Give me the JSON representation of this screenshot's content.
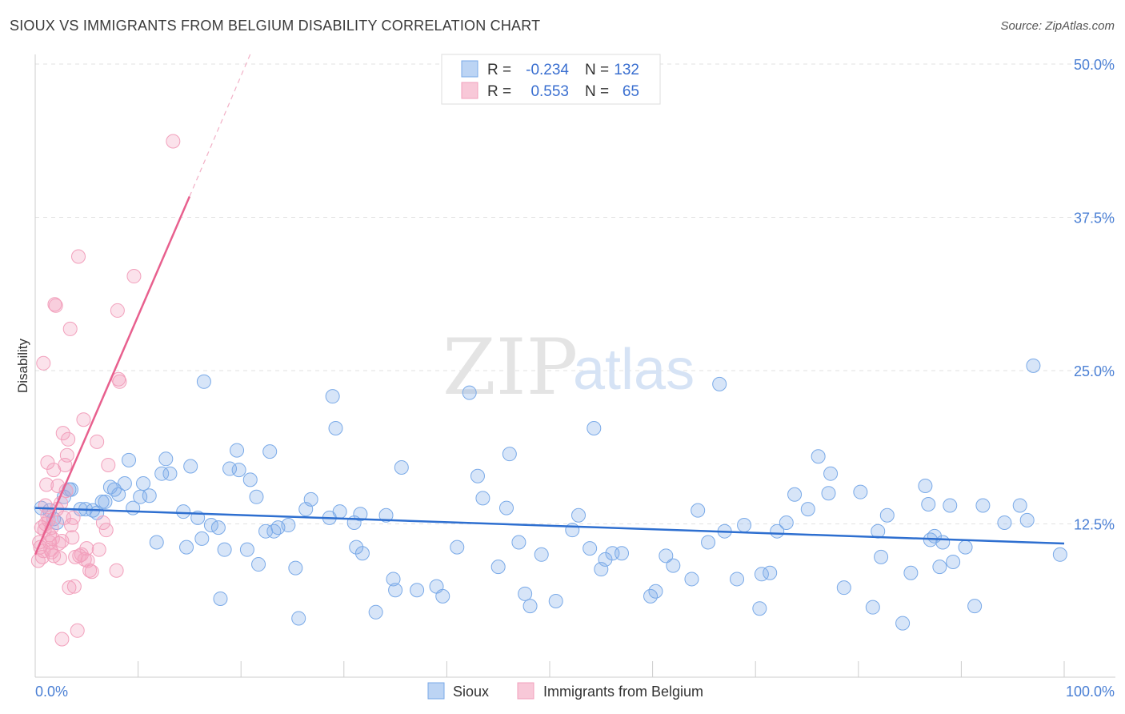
{
  "title": "SIOUX VS IMMIGRANTS FROM BELGIUM DISABILITY CORRELATION CHART",
  "source": "Source: ZipAtlas.com",
  "watermark": {
    "zip": "ZIP",
    "atlas": "atlas"
  },
  "colors": {
    "sioux": "#7aaae8",
    "belgium": "#f2a0bc",
    "sioux_line": "#2e6fd0",
    "belgium_line": "#e8608e",
    "tick": "#4a7fd4"
  },
  "legend": {
    "rows": [
      {
        "r_label": "R =",
        "r_value": "-0.234",
        "n_label": "N =",
        "n_value": "132"
      },
      {
        "r_label": "R =",
        "r_value": "0.553",
        "n_label": "N =",
        "n_value": "65"
      }
    ]
  },
  "chart_data": {
    "type": "scatter",
    "ylabel": "Disability",
    "xlim": [
      0,
      100
    ],
    "ylim": [
      0,
      50
    ],
    "x_tick_labels": [
      "0.0%",
      "100.0%"
    ],
    "y_tick_labels": [
      "12.5%",
      "25.0%",
      "37.5%",
      "50.0%"
    ],
    "y_ticks": [
      12.5,
      25.0,
      37.5,
      50.0
    ],
    "series": [
      {
        "name": "Sioux",
        "trend": {
          "x0": 0,
          "y0": 13.8,
          "x1": 100,
          "y1": 10.9,
          "dash_to": null
        },
        "points": [
          [
            0.6,
            13.8
          ],
          [
            1.4,
            13.6
          ],
          [
            1.8,
            12.9
          ],
          [
            2.1,
            12.6
          ],
          [
            2.8,
            14.7
          ],
          [
            3.3,
            15.3
          ],
          [
            3.5,
            15.3
          ],
          [
            4.4,
            13.7
          ],
          [
            4.9,
            13.7
          ],
          [
            5.6,
            13.6
          ],
          [
            6.0,
            13.4
          ],
          [
            6.5,
            14.3
          ],
          [
            6.8,
            14.3
          ],
          [
            7.3,
            15.5
          ],
          [
            7.7,
            15.3
          ],
          [
            8.1,
            14.9
          ],
          [
            8.7,
            15.8
          ],
          [
            9.1,
            17.7
          ],
          [
            9.5,
            13.8
          ],
          [
            10.2,
            14.7
          ],
          [
            10.5,
            15.8
          ],
          [
            11.1,
            14.8
          ],
          [
            11.8,
            11.0
          ],
          [
            12.3,
            16.6
          ],
          [
            12.7,
            17.8
          ],
          [
            13.1,
            16.6
          ],
          [
            14.4,
            13.5
          ],
          [
            14.7,
            10.6
          ],
          [
            15.1,
            17.2
          ],
          [
            15.8,
            13.0
          ],
          [
            16.2,
            11.3
          ],
          [
            16.4,
            24.1
          ],
          [
            17.1,
            12.4
          ],
          [
            17.8,
            12.2
          ],
          [
            18.0,
            6.4
          ],
          [
            18.4,
            10.4
          ],
          [
            18.9,
            17.0
          ],
          [
            19.6,
            18.5
          ],
          [
            19.8,
            16.9
          ],
          [
            20.6,
            10.4
          ],
          [
            20.9,
            16.1
          ],
          [
            21.5,
            14.7
          ],
          [
            21.7,
            9.2
          ],
          [
            22.4,
            11.9
          ],
          [
            22.8,
            18.4
          ],
          [
            23.2,
            11.9
          ],
          [
            23.6,
            12.2
          ],
          [
            24.6,
            12.4
          ],
          [
            25.3,
            8.9
          ],
          [
            25.6,
            4.8
          ],
          [
            26.3,
            13.7
          ],
          [
            26.8,
            14.5
          ],
          [
            28.6,
            13.0
          ],
          [
            28.9,
            22.9
          ],
          [
            29.2,
            20.3
          ],
          [
            29.6,
            13.5
          ],
          [
            31.0,
            12.6
          ],
          [
            31.2,
            10.6
          ],
          [
            31.6,
            13.3
          ],
          [
            31.8,
            10.1
          ],
          [
            33.1,
            5.3
          ],
          [
            34.1,
            13.2
          ],
          [
            34.8,
            8.0
          ],
          [
            35.0,
            7.1
          ],
          [
            35.6,
            17.1
          ],
          [
            37.1,
            7.1
          ],
          [
            39.0,
            7.4
          ],
          [
            39.6,
            6.6
          ],
          [
            41.0,
            10.6
          ],
          [
            42.2,
            23.2
          ],
          [
            43.0,
            16.4
          ],
          [
            43.5,
            14.6
          ],
          [
            45.0,
            9.0
          ],
          [
            45.8,
            13.8
          ],
          [
            46.1,
            18.2
          ],
          [
            47.0,
            11.0
          ],
          [
            47.6,
            6.8
          ],
          [
            48.1,
            5.8
          ],
          [
            49.2,
            10.0
          ],
          [
            50.6,
            6.2
          ],
          [
            52.2,
            12.0
          ],
          [
            52.8,
            13.2
          ],
          [
            53.9,
            10.5
          ],
          [
            54.3,
            20.3
          ],
          [
            55.0,
            8.8
          ],
          [
            55.4,
            9.6
          ],
          [
            56.1,
            10.1
          ],
          [
            57.0,
            10.1
          ],
          [
            59.8,
            6.6
          ],
          [
            60.3,
            7.0
          ],
          [
            61.3,
            9.9
          ],
          [
            62.0,
            9.1
          ],
          [
            63.8,
            8.0
          ],
          [
            64.4,
            13.6
          ],
          [
            65.4,
            11.0
          ],
          [
            66.5,
            23.9
          ],
          [
            67.0,
            11.9
          ],
          [
            68.2,
            8.0
          ],
          [
            68.9,
            12.4
          ],
          [
            70.4,
            5.6
          ],
          [
            70.6,
            8.4
          ],
          [
            71.4,
            8.5
          ],
          [
            72.1,
            11.9
          ],
          [
            73.0,
            12.6
          ],
          [
            73.8,
            14.9
          ],
          [
            75.1,
            13.7
          ],
          [
            76.1,
            18.0
          ],
          [
            77.1,
            15.0
          ],
          [
            77.3,
            16.6
          ],
          [
            78.6,
            7.3
          ],
          [
            80.2,
            15.1
          ],
          [
            81.4,
            5.7
          ],
          [
            81.9,
            11.9
          ],
          [
            82.2,
            9.8
          ],
          [
            82.8,
            13.2
          ],
          [
            84.3,
            4.4
          ],
          [
            85.1,
            8.5
          ],
          [
            86.5,
            15.6
          ],
          [
            86.8,
            14.1
          ],
          [
            87.0,
            11.2
          ],
          [
            87.4,
            11.5
          ],
          [
            87.9,
            9.0
          ],
          [
            88.2,
            11.0
          ],
          [
            88.9,
            14.0
          ],
          [
            89.2,
            9.4
          ],
          [
            90.4,
            10.6
          ],
          [
            91.3,
            5.8
          ],
          [
            92.1,
            14.0
          ],
          [
            94.2,
            12.6
          ],
          [
            95.7,
            14.0
          ],
          [
            96.4,
            12.8
          ],
          [
            97.0,
            25.4
          ],
          [
            99.6,
            10.0
          ]
        ]
      },
      {
        "name": "Immigrants from Belgium",
        "trend": {
          "x0": 0,
          "y0": 10.0,
          "x1": 15.0,
          "y1": 39.2,
          "dash_to": [
            21.0,
            51.0
          ]
        },
        "points": [
          [
            0.3,
            9.5
          ],
          [
            0.4,
            11.0
          ],
          [
            0.5,
            10.6
          ],
          [
            0.6,
            12.2
          ],
          [
            0.7,
            9.8
          ],
          [
            0.8,
            10.3
          ],
          [
            0.9,
            12.0
          ],
          [
            1.0,
            14.0
          ],
          [
            1.1,
            15.7
          ],
          [
            1.2,
            17.5
          ],
          [
            1.3,
            12.8
          ],
          [
            1.4,
            11.0
          ],
          [
            1.5,
            10.4
          ],
          [
            1.6,
            12.2
          ],
          [
            1.7,
            11.3
          ],
          [
            1.8,
            16.9
          ],
          [
            1.9,
            30.4
          ],
          [
            2.0,
            30.3
          ],
          [
            2.1,
            13.7
          ],
          [
            2.2,
            15.6
          ],
          [
            2.3,
            10.9
          ],
          [
            2.4,
            9.7
          ],
          [
            2.5,
            14.2
          ],
          [
            2.6,
            11.1
          ],
          [
            2.7,
            19.9
          ],
          [
            2.8,
            13.0
          ],
          [
            2.9,
            17.3
          ],
          [
            3.0,
            15.2
          ],
          [
            3.1,
            18.1
          ],
          [
            3.2,
            19.4
          ],
          [
            3.3,
            7.3
          ],
          [
            3.4,
            28.4
          ],
          [
            3.5,
            12.4
          ],
          [
            3.6,
            11.4
          ],
          [
            3.7,
            13.0
          ],
          [
            3.8,
            7.4
          ],
          [
            1.0,
            12.5
          ],
          [
            1.2,
            13.2
          ],
          [
            1.4,
            11.6
          ],
          [
            1.6,
            10.2
          ],
          [
            1.8,
            9.9
          ],
          [
            0.8,
            25.6
          ],
          [
            2.6,
            3.1
          ],
          [
            3.9,
            9.8
          ],
          [
            4.1,
            3.8
          ],
          [
            4.2,
            34.3
          ],
          [
            4.3,
            9.9
          ],
          [
            4.5,
            10.0
          ],
          [
            4.7,
            21.0
          ],
          [
            4.8,
            9.6
          ],
          [
            5.0,
            10.5
          ],
          [
            5.1,
            9.5
          ],
          [
            5.3,
            8.7
          ],
          [
            5.5,
            8.6
          ],
          [
            6.0,
            19.2
          ],
          [
            6.2,
            10.4
          ],
          [
            6.6,
            12.6
          ],
          [
            6.9,
            12.0
          ],
          [
            7.1,
            17.3
          ],
          [
            7.9,
            8.7
          ],
          [
            8.0,
            29.9
          ],
          [
            8.1,
            24.3
          ],
          [
            8.2,
            24.1
          ],
          [
            9.6,
            32.7
          ],
          [
            13.4,
            43.7
          ]
        ]
      }
    ]
  },
  "bottom_legend": [
    "Sioux",
    "Immigrants from Belgium"
  ]
}
